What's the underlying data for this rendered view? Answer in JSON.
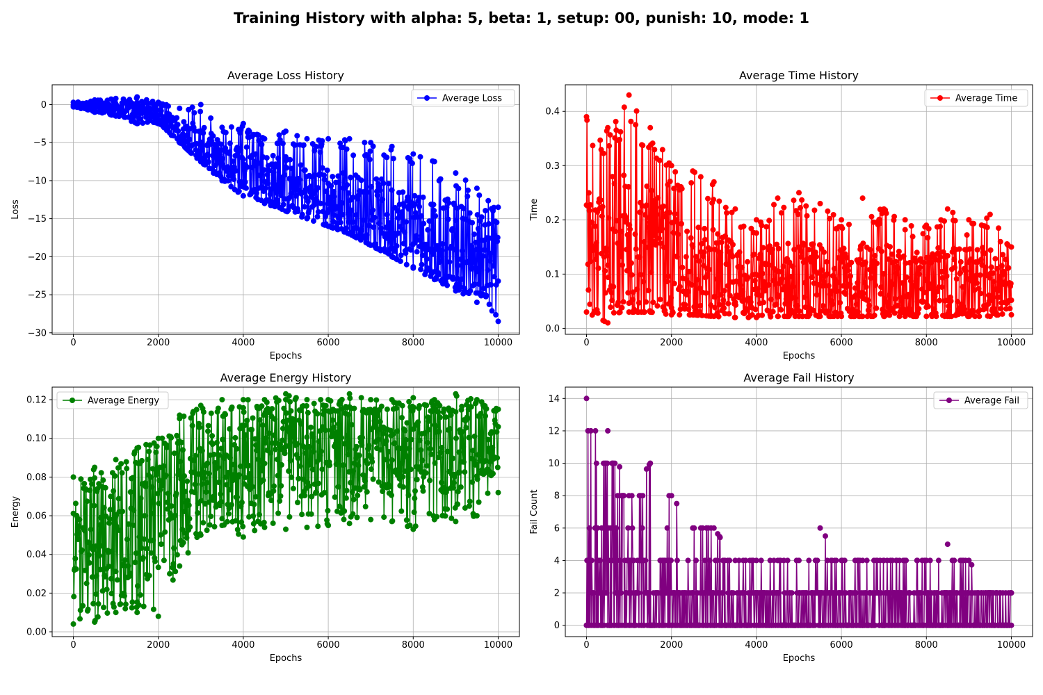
{
  "suptitle": "Training History with alpha: 5, beta: 1, setup: 00, punish: 10, mode: 1",
  "chart_data": [
    {
      "type": "line",
      "title": "Average Loss History",
      "xlabel": "Epochs",
      "ylabel": "Loss",
      "xlim": [
        -500,
        10500
      ],
      "ylim": [
        -30.2,
        2.6
      ],
      "xticks": [
        0,
        2000,
        4000,
        6000,
        8000,
        10000
      ],
      "yticks": [
        -30,
        -25,
        -20,
        -15,
        -10,
        -5,
        0
      ],
      "ytick_labels": [
        "−30",
        "−25",
        "−20",
        "−15",
        "−10",
        "−5",
        "0"
      ],
      "grid": true,
      "legend": "top-right",
      "color": "#0000ff",
      "series": [
        {
          "name": "Average Loss",
          "x": [
            0,
            500,
            1000,
            1500,
            2000,
            2500,
            3000,
            3500,
            4000,
            4500,
            5000,
            5500,
            6000,
            6500,
            7000,
            7500,
            8000,
            8500,
            9000,
            9500,
            10000
          ],
          "upper": [
            0.3,
            0.6,
            0.8,
            1.0,
            0.3,
            -0.5,
            0,
            -3,
            -2.5,
            -4.5,
            -3.5,
            -4.5,
            -4.5,
            -4.5,
            -5,
            -5.5,
            -6.5,
            -7.5,
            -9,
            -11,
            -13.5
          ],
          "center": [
            0,
            -0.3,
            -0.6,
            -0.8,
            -1.5,
            -3.5,
            -5.5,
            -7.5,
            -8.5,
            -9.5,
            -10.5,
            -11.5,
            -12.5,
            -13.5,
            -14.5,
            -15.5,
            -16.5,
            -17.5,
            -18.5,
            -19.5,
            -20.5
          ],
          "lower": [
            -0.3,
            -1.0,
            -1.5,
            -2.5,
            -2.5,
            -5,
            -7.5,
            -10,
            -12,
            -13,
            -14,
            -15,
            -16,
            -17,
            -18.5,
            -20,
            -21.5,
            -23,
            -24.5,
            -26,
            -28.5
          ]
        }
      ]
    },
    {
      "type": "line",
      "title": "Average Time History",
      "xlabel": "Epochs",
      "ylabel": "Time",
      "xlim": [
        -500,
        10500
      ],
      "ylim": [
        -0.011,
        0.449
      ],
      "xticks": [
        0,
        2000,
        4000,
        6000,
        8000,
        10000
      ],
      "yticks": [
        0.0,
        0.1,
        0.2,
        0.3,
        0.4
      ],
      "ytick_labels": [
        "0.0",
        "0.1",
        "0.2",
        "0.3",
        "0.4"
      ],
      "grid": true,
      "legend": "top-right",
      "color": "#ff0000",
      "series": [
        {
          "name": "Average Time",
          "x": [
            0,
            500,
            1000,
            1500,
            2000,
            2500,
            3000,
            3500,
            4000,
            4500,
            5000,
            5500,
            6000,
            6500,
            7000,
            7500,
            8000,
            8500,
            9000,
            9500,
            10000
          ],
          "upper": [
            0.39,
            0.37,
            0.43,
            0.37,
            0.3,
            0.29,
            0.27,
            0.22,
            0.2,
            0.24,
            0.25,
            0.23,
            0.2,
            0.24,
            0.22,
            0.2,
            0.19,
            0.22,
            0.2,
            0.21,
            0.15
          ],
          "center": [
            0.13,
            0.14,
            0.15,
            0.13,
            0.11,
            0.1,
            0.09,
            0.085,
            0.08,
            0.08,
            0.08,
            0.08,
            0.08,
            0.08,
            0.08,
            0.08,
            0.08,
            0.08,
            0.08,
            0.08,
            0.08
          ],
          "lower": [
            0.03,
            0.01,
            0.03,
            0.03,
            0.025,
            0.025,
            0.022,
            0.02,
            0.02,
            0.022,
            0.022,
            0.022,
            0.022,
            0.022,
            0.022,
            0.022,
            0.022,
            0.022,
            0.022,
            0.022,
            0.025
          ]
        }
      ]
    },
    {
      "type": "line",
      "title": "Average Energy History",
      "xlabel": "Epochs",
      "ylabel": "Energy",
      "xlim": [
        -500,
        10500
      ],
      "ylim": [
        -0.0025,
        0.1265
      ],
      "xticks": [
        0,
        2000,
        4000,
        6000,
        8000,
        10000
      ],
      "yticks": [
        0.0,
        0.02,
        0.04,
        0.06,
        0.08,
        0.1,
        0.12
      ],
      "ytick_labels": [
        "0.00",
        "0.02",
        "0.04",
        "0.06",
        "0.08",
        "0.10",
        "0.12"
      ],
      "grid": true,
      "legend": "top-left",
      "color": "#008000",
      "series": [
        {
          "name": "Average Energy",
          "x": [
            0,
            500,
            1000,
            1500,
            2000,
            2500,
            3000,
            3500,
            4000,
            4500,
            5000,
            5500,
            6000,
            6500,
            7000,
            7500,
            8000,
            8500,
            9000,
            9500,
            10000
          ],
          "upper": [
            0.08,
            0.085,
            0.089,
            0.095,
            0.1,
            0.112,
            0.117,
            0.12,
            0.12,
            0.12,
            0.123,
            0.12,
            0.12,
            0.123,
            0.12,
            0.12,
            0.121,
            0.12,
            0.123,
            0.12,
            0.115
          ],
          "center": [
            0.045,
            0.047,
            0.05,
            0.055,
            0.063,
            0.075,
            0.083,
            0.088,
            0.09,
            0.091,
            0.092,
            0.092,
            0.093,
            0.093,
            0.093,
            0.094,
            0.094,
            0.095,
            0.095,
            0.096,
            0.098
          ],
          "lower": [
            0.004,
            0.005,
            0.01,
            0.01,
            0.008,
            0.034,
            0.05,
            0.055,
            0.049,
            0.054,
            0.053,
            0.054,
            0.055,
            0.056,
            0.058,
            0.057,
            0.053,
            0.058,
            0.057,
            0.06,
            0.072
          ]
        }
      ]
    },
    {
      "type": "line",
      "title": "Average Fail History",
      "xlabel": "Epochs",
      "ylabel": "Fail Count",
      "xlim": [
        -500,
        10500
      ],
      "ylim": [
        -0.7,
        14.7
      ],
      "xticks": [
        0,
        2000,
        4000,
        6000,
        8000,
        10000
      ],
      "yticks": [
        0,
        2,
        4,
        6,
        8,
        10,
        12,
        14
      ],
      "ytick_labels": [
        "0",
        "2",
        "4",
        "6",
        "8",
        "10",
        "12",
        "14"
      ],
      "grid": true,
      "legend": "top-right",
      "color": "#800080",
      "series": [
        {
          "name": "Average Fail",
          "x": [
            0,
            500,
            1000,
            1500,
            2000,
            2500,
            3000,
            3500,
            4000,
            4500,
            5000,
            5500,
            6000,
            6500,
            7000,
            7500,
            8000,
            8500,
            9000,
            9500,
            10000
          ],
          "upper": [
            14,
            12,
            8,
            10,
            8,
            6,
            6,
            4,
            4,
            4,
            4,
            6,
            4,
            4,
            4,
            4,
            4,
            5,
            4,
            2,
            2
          ],
          "center": [
            2,
            2,
            2,
            2,
            1,
            1,
            1,
            1,
            1,
            1,
            1,
            1,
            1,
            1,
            1,
            1,
            1,
            1,
            1,
            1,
            1
          ],
          "lower": [
            0,
            0,
            0,
            0,
            0,
            0,
            0,
            0,
            0,
            0,
            0,
            0,
            0,
            0,
            0,
            0,
            0,
            0,
            0,
            0,
            0
          ]
        }
      ]
    }
  ]
}
